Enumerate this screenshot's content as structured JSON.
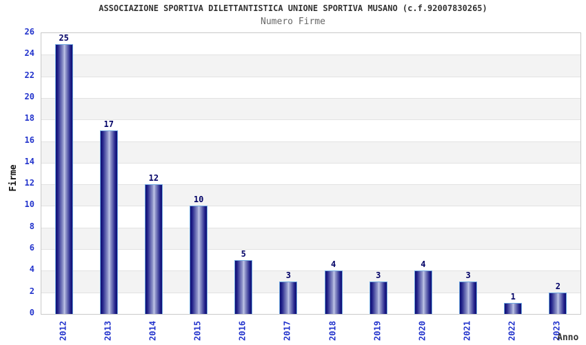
{
  "header": {
    "title": "ASSOCIAZIONE SPORTIVA DILETTANTISTICA UNIONE SPORTIVA MUSANO (c.f.92007830265)",
    "subtitle": "Numero Firme"
  },
  "chart_data": {
    "type": "bar",
    "title": "ASSOCIAZIONE SPORTIVA DILETTANTISTICA UNIONE SPORTIVA MUSANO (c.f.92007830265)",
    "subtitle": "Numero Firme",
    "categories": [
      "2012",
      "2013",
      "2014",
      "2015",
      "2016",
      "2017",
      "2018",
      "2019",
      "2020",
      "2021",
      "2022",
      "2023"
    ],
    "values": [
      25,
      17,
      12,
      10,
      5,
      3,
      4,
      3,
      4,
      3,
      1,
      2
    ],
    "xlabel": "Anno",
    "ylabel": "Firme",
    "ylim": [
      0,
      26
    ],
    "ytick_step": 2,
    "yticks": [
      0,
      2,
      4,
      6,
      8,
      10,
      12,
      14,
      16,
      18,
      20,
      22,
      24,
      26
    ],
    "legend": "none",
    "grid": "horizontal gridlines every 2 units with alternating white/gray bands",
    "bar_value_labels": true,
    "x_tick_rotation_deg": 90
  },
  "colors": {
    "axis_text": "#2233cc",
    "value_label": "#000066",
    "bar_dark": "#0d0d72",
    "bar_light": "#c4c9ea",
    "bar_border": "#6fa8e0",
    "band_gray": "#f3f3f3",
    "band_white": "#ffffff",
    "gridline": "#e2e2e2",
    "plot_border": "#c9c9c9",
    "title_text": "#333333",
    "subtitle_text": "#666666"
  }
}
